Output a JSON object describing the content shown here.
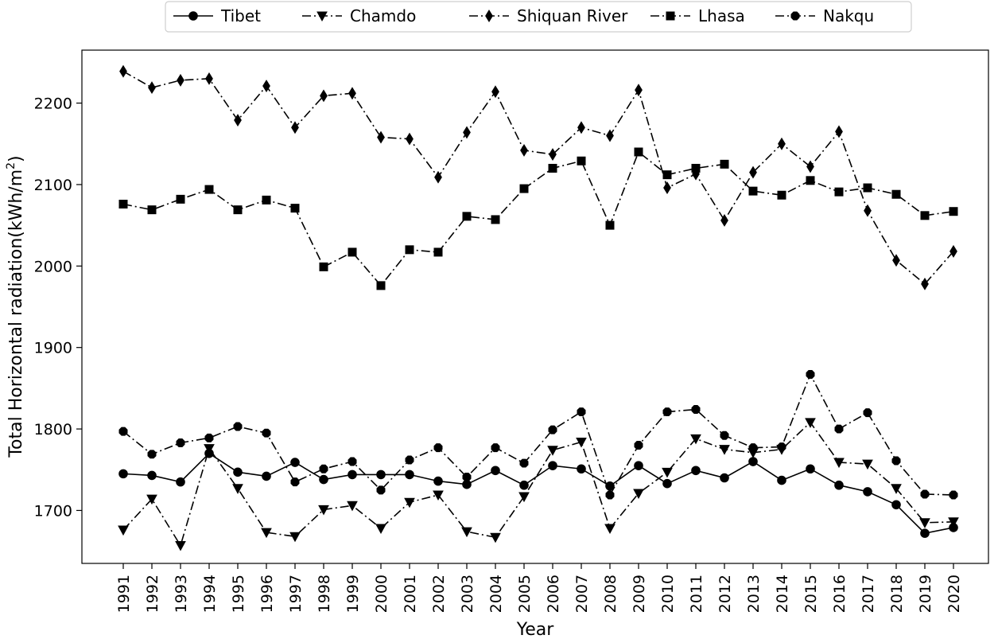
{
  "chart_data": {
    "type": "line",
    "title": "",
    "xlabel": "Year",
    "ylabel_main": "Total Horizontal radiation(kWh/m",
    "ylabel_sup": "2",
    "ylabel_close": ")",
    "ylim": [
      1635,
      2265
    ],
    "yticks": [
      1700,
      1800,
      1900,
      2000,
      2100,
      2200
    ],
    "grid": false,
    "legend_position": "top",
    "categories": [
      "1991",
      "1992",
      "1993",
      "1994",
      "1995",
      "1996",
      "1997",
      "1998",
      "1999",
      "2000",
      "2001",
      "2002",
      "2003",
      "2004",
      "2005",
      "2006",
      "2007",
      "2008",
      "2009",
      "2010",
      "2011",
      "2012",
      "2013",
      "2014",
      "2015",
      "2016",
      "2017",
      "2018",
      "2019",
      "2020"
    ],
    "series": [
      {
        "name": "Tibet",
        "marker": "circle",
        "dash": "solid",
        "values": [
          1745,
          1743,
          1735,
          1770,
          1747,
          1742,
          1759,
          1738,
          1744,
          1744,
          1744,
          1736,
          1732,
          1749,
          1731,
          1755,
          1751,
          1730,
          1755,
          1733,
          1749,
          1740,
          1760,
          1737,
          1751,
          1731,
          1723,
          1707,
          1672,
          1679
        ]
      },
      {
        "name": "Chamdo",
        "marker": "triangle-down",
        "dash": "dashdot",
        "values": [
          1676,
          1714,
          1657,
          1776,
          1727,
          1673,
          1668,
          1701,
          1706,
          1678,
          1710,
          1719,
          1674,
          1667,
          1717,
          1774,
          1784,
          1678,
          1721,
          1747,
          1788,
          1775,
          1771,
          1775,
          1808,
          1759,
          1757,
          1727,
          1685,
          1686
        ]
      },
      {
        "name": "Shiquan River",
        "marker": "diamond",
        "dash": "dashdot",
        "values": [
          2239,
          2219,
          2228,
          2230,
          2179,
          2221,
          2170,
          2209,
          2212,
          2158,
          2156,
          2109,
          2164,
          2214,
          2142,
          2137,
          2170,
          2160,
          2216,
          2096,
          2113,
          2056,
          2115,
          2150,
          2122,
          2165,
          2068,
          2007,
          1978,
          2018
        ]
      },
      {
        "name": "Lhasa",
        "marker": "square",
        "dash": "dashdot",
        "values": [
          2076,
          2069,
          2082,
          2094,
          2069,
          2081,
          2071,
          1999,
          2017,
          1976,
          2020,
          2017,
          2061,
          2057,
          2095,
          2120,
          2129,
          2050,
          2140,
          2112,
          2120,
          2125,
          2092,
          2087,
          2105,
          2091,
          2096,
          2088,
          2062,
          2067
        ]
      },
      {
        "name": "Nakqu",
        "marker": "octagon",
        "dash": "dashdot",
        "values": [
          1797,
          1769,
          1783,
          1789,
          1803,
          1795,
          1735,
          1751,
          1760,
          1725,
          1762,
          1777,
          1741,
          1777,
          1758,
          1799,
          1821,
          1719,
          1780,
          1821,
          1824,
          1792,
          1777,
          1778,
          1867,
          1800,
          1820,
          1761,
          1720,
          1719
        ]
      }
    ]
  }
}
